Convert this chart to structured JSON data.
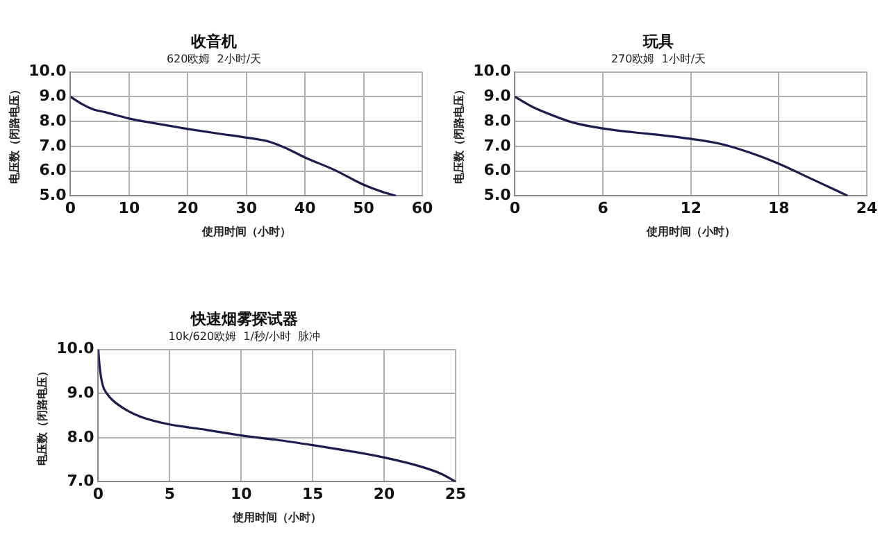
{
  "chart_data": [
    {
      "type": "line",
      "title": "收音机",
      "subtitle": "620欧姆  2小时/天",
      "xlabel": "使用时间（小时）",
      "ylabel": "电压数（闭路电压）",
      "color": "#1c1c4e",
      "x": [
        0,
        2,
        4,
        6,
        10,
        15,
        20,
        25,
        30,
        34,
        37,
        40,
        45,
        50,
        53,
        55.5
      ],
      "values": [
        9.0,
        8.7,
        8.48,
        8.37,
        8.12,
        7.9,
        7.7,
        7.52,
        7.35,
        7.18,
        6.9,
        6.55,
        6.05,
        5.45,
        5.18,
        5.0
      ],
      "xlim": [
        0,
        60
      ],
      "xticks": [
        0,
        10,
        20,
        30,
        40,
        50,
        60
      ],
      "ylim": [
        5,
        10
      ],
      "yticks": [
        {
          "value": 5,
          "label": "5.0"
        },
        {
          "value": 6,
          "label": "6.0"
        },
        {
          "value": 7,
          "label": "7.0"
        },
        {
          "value": 8,
          "label": "8.0"
        },
        {
          "value": 9,
          "label": "9.0"
        },
        {
          "value": 10,
          "label": "10.0"
        }
      ],
      "grid": true
    },
    {
      "type": "line",
      "title": "玩具",
      "subtitle": "270欧姆  1小时/天",
      "xlabel": "使用时间（小时）",
      "ylabel": "电压数（闭路电压）",
      "color": "#1c1c4e",
      "x": [
        0,
        1,
        2,
        4,
        6,
        8,
        10,
        12,
        14,
        16,
        18,
        20,
        22,
        22.7
      ],
      "values": [
        9.0,
        8.65,
        8.38,
        7.95,
        7.72,
        7.57,
        7.45,
        7.3,
        7.1,
        6.75,
        6.3,
        5.75,
        5.2,
        5.0
      ],
      "xlim": [
        0,
        24
      ],
      "xticks": [
        0,
        6,
        12,
        18,
        24
      ],
      "ylim": [
        5,
        10
      ],
      "yticks": [
        {
          "value": 5,
          "label": "5.0"
        },
        {
          "value": 6,
          "label": "6.0"
        },
        {
          "value": 7,
          "label": "7.0"
        },
        {
          "value": 8,
          "label": "8.0"
        },
        {
          "value": 9,
          "label": "9.0"
        },
        {
          "value": 10,
          "label": "10.0"
        }
      ],
      "grid": true
    },
    {
      "type": "line",
      "title": "快速烟雾探试器",
      "subtitle": "10k/620欧姆  1/秒/小时  脉冲",
      "xlabel": "使用时间（小时）",
      "ylabel": "电压数（闭路电压）",
      "color": "#1c1c4e",
      "x": [
        0,
        0.1,
        0.3,
        0.6,
        1,
        2,
        3,
        5,
        7.5,
        10,
        12.5,
        15,
        17.5,
        20,
        22.5,
        24,
        25
      ],
      "values": [
        10.0,
        9.6,
        9.2,
        9.0,
        8.85,
        8.62,
        8.47,
        8.3,
        8.18,
        8.05,
        7.95,
        7.83,
        7.7,
        7.55,
        7.35,
        7.18,
        7.0
      ],
      "xlim": [
        0,
        25
      ],
      "xticks": [
        0,
        5,
        10,
        15,
        20,
        25
      ],
      "ylim": [
        7,
        10
      ],
      "yticks": [
        {
          "value": 7,
          "label": "7.0"
        },
        {
          "value": 8,
          "label": "8.0"
        },
        {
          "value": 9,
          "label": "9.0"
        },
        {
          "value": 10,
          "label": "10.0"
        }
      ],
      "grid": true
    }
  ]
}
